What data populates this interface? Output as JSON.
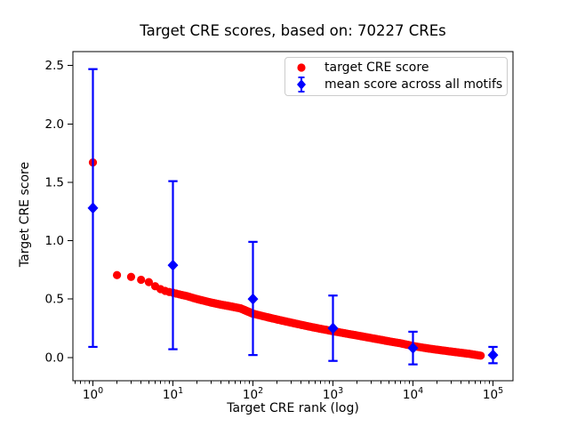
{
  "chart_data": {
    "type": "scatter",
    "title": "Target CRE scores, based on: 70227 CREs",
    "xlabel": "Target CRE rank (log)",
    "ylabel": "Target CRE score",
    "x_scale": "log",
    "grid": false,
    "legend_position": "upper right inside axes",
    "x_tick_exponents": [
      0,
      1,
      2,
      3,
      4,
      5
    ],
    "y_ticks": [
      "0.0",
      "0.5",
      "1.0",
      "1.5",
      "2.0",
      "2.5"
    ],
    "xlim_exponents": [
      -0.25,
      5.25
    ],
    "ylim": [
      -0.2,
      2.62
    ],
    "colors": {
      "target": "#ff0000",
      "mean": "#0000ff",
      "spine": "#000000",
      "legend_border": "#cccccc"
    },
    "series": [
      {
        "name": "target CRE score",
        "type": "scatter",
        "marker": "circle",
        "color": "#ff0000",
        "n_points": 70227,
        "anchors": [
          [
            1,
            1.67
          ],
          [
            2,
            0.705
          ],
          [
            3,
            0.69
          ],
          [
            4,
            0.665
          ],
          [
            5,
            0.645
          ],
          [
            6,
            0.61
          ],
          [
            7,
            0.585
          ],
          [
            8,
            0.57
          ],
          [
            9,
            0.56
          ],
          [
            10,
            0.555
          ],
          [
            12,
            0.54
          ],
          [
            15,
            0.525
          ],
          [
            20,
            0.5
          ],
          [
            30,
            0.47
          ],
          [
            40,
            0.452
          ],
          [
            50,
            0.44
          ],
          [
            70,
            0.42
          ],
          [
            100,
            0.375
          ],
          [
            150,
            0.345
          ],
          [
            200,
            0.325
          ],
          [
            300,
            0.298
          ],
          [
            500,
            0.265
          ],
          [
            700,
            0.245
          ],
          [
            1000,
            0.225
          ],
          [
            1500,
            0.203
          ],
          [
            2000,
            0.188
          ],
          [
            3000,
            0.166
          ],
          [
            5000,
            0.138
          ],
          [
            7000,
            0.121
          ],
          [
            10000,
            0.098
          ],
          [
            15000,
            0.078
          ],
          [
            20000,
            0.066
          ],
          [
            30000,
            0.05
          ],
          [
            50000,
            0.031
          ],
          [
            70227,
            0.015
          ]
        ]
      },
      {
        "name": "mean score across all motifs",
        "type": "errorbar",
        "marker": "diamond",
        "color": "#0000ff",
        "x": [
          1,
          10,
          100,
          1000,
          10000,
          100000
        ],
        "mean": [
          1.28,
          0.79,
          0.5,
          0.25,
          0.08,
          0.02
        ],
        "err_hi": [
          2.47,
          1.51,
          0.99,
          0.53,
          0.22,
          0.09
        ],
        "err_lo": [
          0.09,
          0.07,
          0.02,
          -0.03,
          -0.06,
          -0.05
        ]
      }
    ]
  }
}
